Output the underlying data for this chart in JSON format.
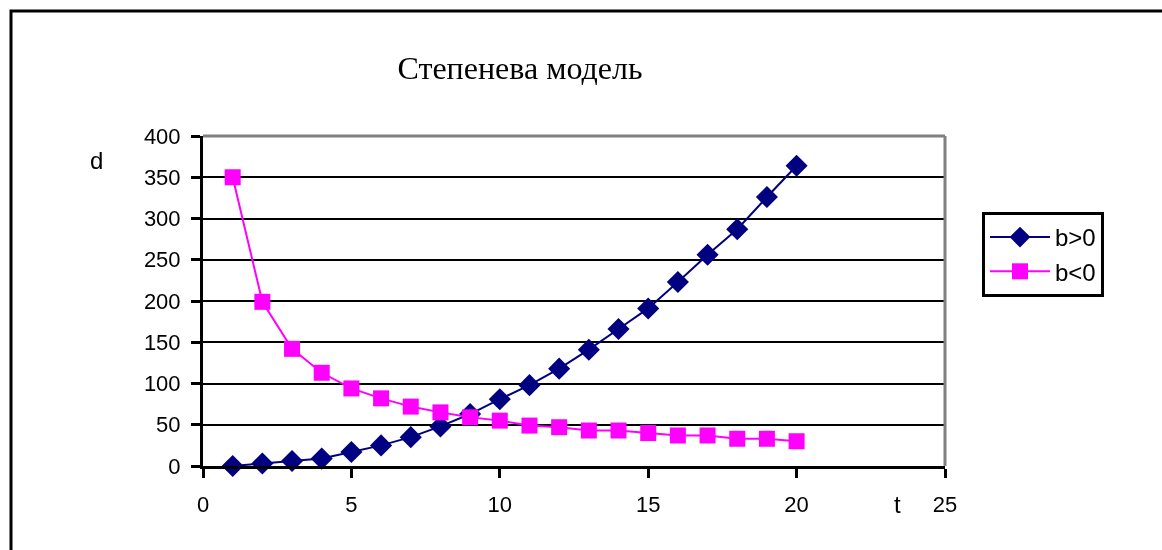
{
  "chart_data": {
    "type": "line",
    "title": "Степенева модель",
    "xlabel": "t",
    "ylabel": "d",
    "x": [
      1,
      2,
      3,
      4,
      5,
      6,
      7,
      8,
      9,
      10,
      11,
      12,
      13,
      14,
      15,
      16,
      17,
      18,
      19,
      20
    ],
    "series": [
      {
        "name": "b>0",
        "color": "#000080",
        "marker": "diamond",
        "values": [
          0,
          3,
          6,
          9,
          17,
          25,
          35,
          48,
          63,
          81,
          98,
          118,
          141,
          166,
          191,
          223,
          256,
          287,
          326,
          364
        ]
      },
      {
        "name": "b<0",
        "color": "#ff00ff",
        "marker": "square",
        "values": [
          350,
          199,
          142,
          113,
          94,
          82,
          72,
          65,
          59,
          55,
          49,
          47,
          43,
          43,
          40,
          37,
          37,
          33,
          33,
          30
        ]
      }
    ],
    "xlim": [
      0,
      25
    ],
    "xticks": [
      0,
      5,
      10,
      15,
      20,
      25
    ],
    "ylim": [
      0,
      400
    ],
    "yticks": [
      0,
      50,
      100,
      150,
      200,
      250,
      300,
      350,
      400
    ],
    "grid": "y",
    "legend": "right",
    "line_style": "solid"
  }
}
